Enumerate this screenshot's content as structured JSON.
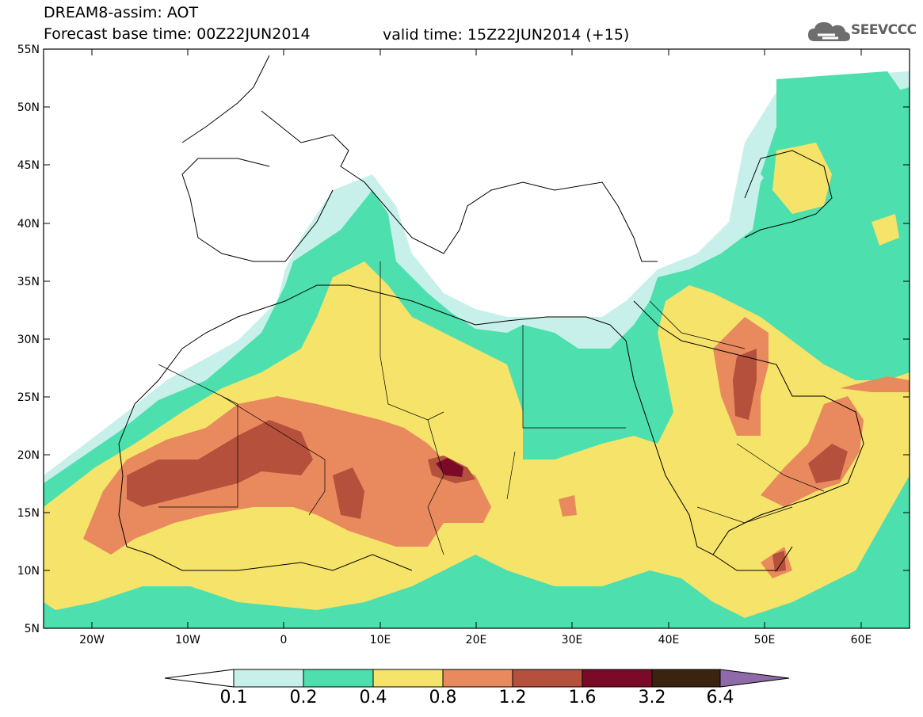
{
  "header": {
    "line1": "DREAM8-assim: AOT",
    "line2": "Forecast base time: 00Z22JUN2014",
    "valid": "valid time: 15Z22JUN2014 (+15)"
  },
  "logo": {
    "text": "SEEVCCC",
    "icon": "cloud-icon"
  },
  "map": {
    "lon_range": [
      -25,
      65
    ],
    "lat_range": [
      5,
      55
    ],
    "lat_ticks": [
      "55N",
      "50N",
      "45N",
      "40N",
      "35N",
      "30N",
      "25N",
      "20N",
      "15N",
      "10N",
      "5N"
    ],
    "lon_ticks": [
      "20W",
      "10W",
      "0",
      "10E",
      "20E",
      "30E",
      "40E",
      "50E",
      "60E"
    ]
  },
  "colorbar": {
    "labels": [
      "0.1",
      "0.2",
      "0.4",
      "0.8",
      "1.2",
      "1.6",
      "3.2",
      "6.4"
    ],
    "colors": [
      "#c8f0ea",
      "#4ddfae",
      "#f5e36a",
      "#e98a5e",
      "#b4503c",
      "#7a0a28",
      "#3a2410",
      "#8e6aa8"
    ]
  }
}
